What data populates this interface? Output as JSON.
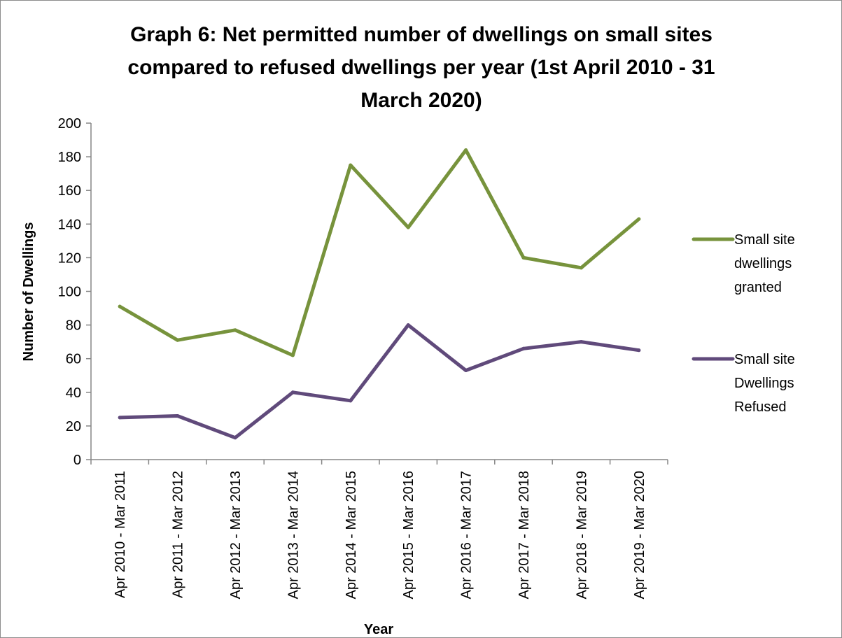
{
  "chart_data": {
    "type": "line",
    "title": [
      "Graph 6: Net permitted number of dwellings on small sites",
      "compared to refused dwellings per year (1st April 2010 - 31",
      "March 2020)"
    ],
    "xlabel": "Year",
    "ylabel": "Number of Dwellings",
    "ylim": [
      0,
      200
    ],
    "yticks": [
      0,
      20,
      40,
      60,
      80,
      100,
      120,
      140,
      160,
      180,
      200
    ],
    "grid": false,
    "legend_position": "right",
    "categories": [
      "Apr 2010 - Mar 2011",
      "Apr 2011 - Mar 2012",
      "Apr 2012 - Mar 2013",
      "Apr 2013 - Mar 2014",
      "Apr 2014 - Mar 2015",
      "Apr 2015 - Mar 2016",
      "Apr 2016 - Mar 2017",
      "Apr 2017 - Mar 2018",
      "Apr 2018 - Mar 2019",
      "Apr 2019 - Mar 2020"
    ],
    "series": [
      {
        "name_lines": [
          "Small site",
          "dwellings",
          "granted"
        ],
        "color": "#77933C",
        "values": [
          91,
          71,
          77,
          62,
          175,
          138,
          184,
          120,
          114,
          143
        ]
      },
      {
        "name_lines": [
          "Small site",
          "Dwellings",
          "Refused"
        ],
        "color": "#604A7B",
        "values": [
          25,
          26,
          13,
          40,
          35,
          80,
          53,
          66,
          70,
          65
        ]
      }
    ]
  }
}
